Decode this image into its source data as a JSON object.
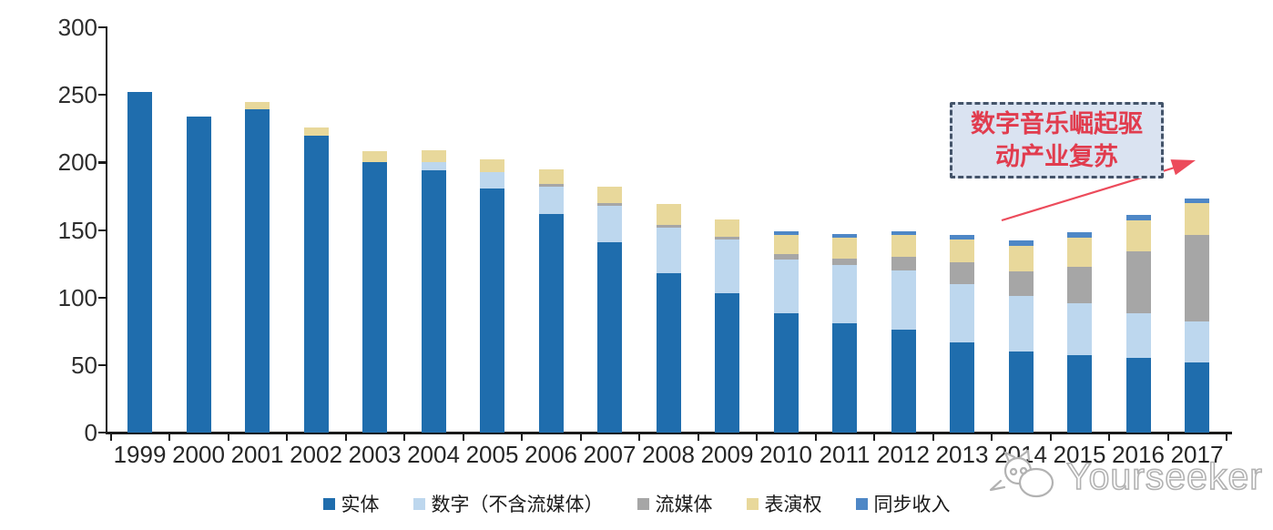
{
  "chart_data": {
    "type": "bar",
    "subtype": "stacked",
    "title": "",
    "categories": [
      "1999",
      "2000",
      "2001",
      "2002",
      "2003",
      "2004",
      "2005",
      "2006",
      "2007",
      "2008",
      "2009",
      "2010",
      "2011",
      "2012",
      "2013",
      "2014",
      "2015",
      "2016",
      "2017"
    ],
    "series": [
      {
        "name": "实体",
        "color": "#1F6DAD",
        "values": [
          252,
          234,
          239,
          220,
          200,
          194,
          181,
          162,
          141,
          118,
          103,
          88,
          81,
          76,
          67,
          60,
          57,
          55,
          52
        ]
      },
      {
        "name": "数字（不含流媒体）",
        "color": "#BDD7EE",
        "values": [
          0,
          0,
          0,
          0,
          0,
          6,
          12,
          20,
          27,
          34,
          40,
          40,
          43,
          44,
          43,
          41,
          39,
          33,
          30
        ]
      },
      {
        "name": "流媒体",
        "color": "#A6A6A6",
        "values": [
          0,
          0,
          0,
          0,
          0,
          0,
          0,
          2,
          2,
          2,
          2,
          4,
          5,
          10,
          16,
          18,
          27,
          46,
          64
        ]
      },
      {
        "name": "表演权",
        "color": "#E8D89B",
        "values": [
          0,
          0,
          6,
          6,
          8,
          9,
          9,
          11,
          12,
          15,
          13,
          14,
          15,
          16,
          17,
          19,
          21,
          23,
          24
        ]
      },
      {
        "name": "同步收入",
        "color": "#4E87C6",
        "values": [
          0,
          0,
          0,
          0,
          0,
          0,
          0,
          0,
          0,
          0,
          0,
          3,
          3,
          3,
          3,
          4,
          4,
          4,
          3
        ]
      }
    ],
    "totals": [
      252,
      234,
      245,
      226,
      208,
      209,
      202,
      195,
      182,
      169,
      158,
      149,
      147,
      149,
      146,
      142,
      148,
      161,
      173
    ],
    "xlabel": "",
    "ylabel": "",
    "ylim": [
      0,
      300
    ],
    "y_ticks": [
      0,
      50,
      100,
      150,
      200,
      250,
      300
    ],
    "grid": "off",
    "legend_position": "bottom"
  },
  "annotation": {
    "text": "数字音乐崛起驱动产业复苏",
    "text_line1": "数字音乐崛起驱",
    "text_line2": "动产业复苏",
    "box_fill_color": "#DAE3F1",
    "box_border_color": "#44546A",
    "text_color": "#E13C4E",
    "arrow_color": "#EC4B5B"
  },
  "watermark": {
    "text": "Yourseeker",
    "logo_icon": "cat-doodle-icon",
    "color": "#B2B2B2"
  },
  "axis": {
    "line_color": "#1A1A1A",
    "label_color": "#2E2E2E"
  }
}
